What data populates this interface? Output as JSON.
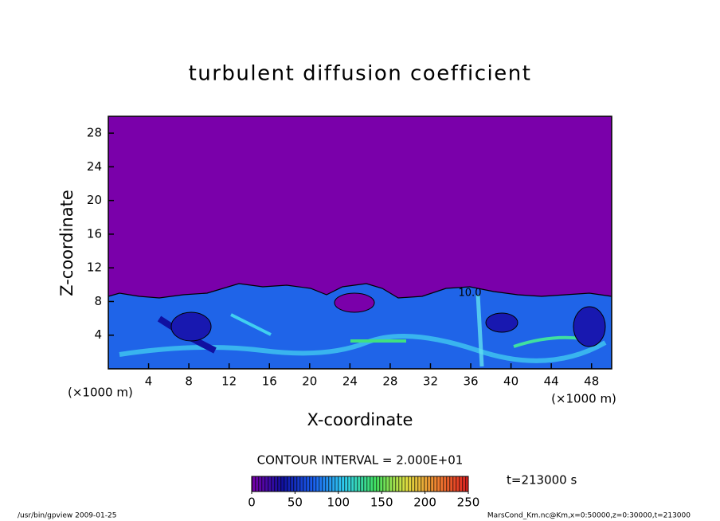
{
  "chart_data": {
    "type": "contour",
    "title": "turbulent diffusion coefficient",
    "xlabel": "X-coordinate",
    "ylabel": "Z-coordinate",
    "x_unit": "(×1000 m)",
    "y_unit": "(×1000 m)",
    "xlim": [
      0,
      50
    ],
    "ylim": [
      0,
      30
    ],
    "xticks": [
      4,
      8,
      12,
      16,
      20,
      24,
      28,
      32,
      36,
      40,
      44,
      48
    ],
    "yticks": [
      4,
      8,
      12,
      16,
      20,
      24,
      28
    ],
    "contour_labels": [
      {
        "value": 10,
        "label": "10.0"
      }
    ],
    "contour_interval": "CONTOUR INTERVAL = 2.000E+01",
    "colorbar": {
      "lim": [
        0,
        250
      ],
      "ticks": [
        0,
        50,
        100,
        150,
        200,
        250
      ],
      "colors": [
        "#7a00aa",
        "#1010a0",
        "#1a60f0",
        "#30d0f0",
        "#40e060",
        "#e0e040",
        "#f08030",
        "#e02020"
      ]
    },
    "background_color": "#7a00aa",
    "time_label": "t=213000 s",
    "footer_left": "/usr/bin/gpview  2009-01-25",
    "footer_right": "MarsCond_Km.nc@Km,x=0:50000,z=0:30000,t=213000"
  }
}
